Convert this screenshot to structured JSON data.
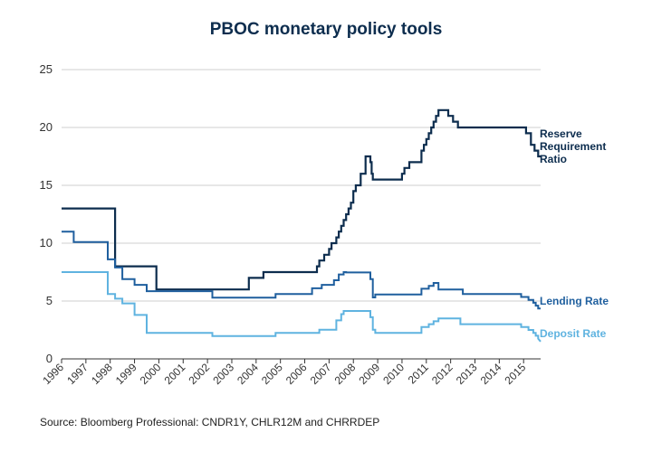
{
  "chart_data": {
    "type": "line",
    "title": "PBOC monetary policy tools",
    "source": "Source: Bloomberg Professional: CNDR1Y, CHLR12M and CHRRDEP",
    "xlabel": "",
    "ylabel": "",
    "xlim": [
      1996,
      2015.7
    ],
    "ylim": [
      0,
      25
    ],
    "y_ticks": [
      "0",
      "5",
      "10",
      "15",
      "20",
      "25"
    ],
    "x_ticks": [
      "1996",
      "1997",
      "1998",
      "1999",
      "2000",
      "2001",
      "2002",
      "2003",
      "2004",
      "2005",
      "2006",
      "2007",
      "2008",
      "2009",
      "2010",
      "2011",
      "2012",
      "2013",
      "2014",
      "2015"
    ],
    "grid": true,
    "colors": {
      "rrr": "#0d2d4e",
      "lending": "#1f5f9e",
      "deposit": "#5fb3e0"
    },
    "series": [
      {
        "name": "Reserve Requirement Ratio",
        "label_lines": [
          "Reserve",
          "Requirement",
          "Ratio"
        ],
        "x": [
          1996.0,
          1998.2,
          1998.2,
          1999.9,
          1999.9,
          2003.7,
          2003.7,
          2004.3,
          2004.3,
          2006.5,
          2006.5,
          2006.6,
          2006.6,
          2006.8,
          2006.8,
          2007.0,
          2007.0,
          2007.1,
          2007.1,
          2007.3,
          2007.3,
          2007.4,
          2007.4,
          2007.5,
          2007.5,
          2007.6,
          2007.6,
          2007.7,
          2007.7,
          2007.8,
          2007.8,
          2007.9,
          2007.9,
          2008.0,
          2008.0,
          2008.1,
          2008.1,
          2008.3,
          2008.3,
          2008.5,
          2008.5,
          2008.7,
          2008.7,
          2008.75,
          2008.75,
          2008.8,
          2008.8,
          2010.0,
          2010.0,
          2010.1,
          2010.1,
          2010.3,
          2010.3,
          2010.8,
          2010.8,
          2010.9,
          2010.9,
          2011.0,
          2011.0,
          2011.1,
          2011.1,
          2011.2,
          2011.2,
          2011.3,
          2011.3,
          2011.4,
          2011.4,
          2011.5,
          2011.5,
          2011.9,
          2011.9,
          2012.1,
          2012.1,
          2012.3,
          2012.3,
          2015.1,
          2015.1,
          2015.3,
          2015.3,
          2015.45,
          2015.45,
          2015.6,
          2015.6,
          2015.7
        ],
        "values": [
          13.0,
          13.0,
          8.0,
          8.0,
          6.0,
          6.0,
          7.0,
          7.0,
          7.5,
          7.5,
          8.0,
          8.0,
          8.5,
          8.5,
          9.0,
          9.0,
          9.5,
          9.5,
          10.0,
          10.0,
          10.5,
          10.5,
          11.0,
          11.0,
          11.5,
          11.5,
          12.0,
          12.0,
          12.5,
          12.5,
          13.0,
          13.0,
          13.5,
          13.5,
          14.5,
          14.5,
          15.0,
          15.0,
          16.0,
          16.0,
          17.5,
          17.5,
          17.0,
          17.0,
          16.0,
          16.0,
          15.5,
          15.5,
          16.0,
          16.0,
          16.5,
          16.5,
          17.0,
          17.0,
          18.0,
          18.0,
          18.5,
          18.5,
          19.0,
          19.0,
          19.5,
          19.5,
          20.0,
          20.0,
          20.5,
          20.5,
          21.0,
          21.0,
          21.5,
          21.5,
          21.0,
          21.0,
          20.5,
          20.5,
          20.0,
          20.0,
          19.5,
          19.5,
          18.5,
          18.5,
          18.0,
          18.0,
          17.5,
          17.5
        ]
      },
      {
        "name": "Lending Rate",
        "x": [
          1996.0,
          1996.5,
          1996.5,
          1997.9,
          1997.9,
          1998.2,
          1998.2,
          1998.5,
          1998.5,
          1999.0,
          1999.0,
          1999.5,
          1999.5,
          2002.2,
          2002.2,
          2004.8,
          2004.8,
          2006.3,
          2006.3,
          2006.7,
          2006.7,
          2007.2,
          2007.2,
          2007.4,
          2007.4,
          2007.6,
          2007.6,
          2007.7,
          2007.7,
          2008.7,
          2008.7,
          2008.8,
          2008.8,
          2008.9,
          2008.9,
          2010.8,
          2010.8,
          2011.1,
          2011.1,
          2011.3,
          2011.3,
          2011.5,
          2011.5,
          2012.4,
          2012.4,
          2012.5,
          2012.5,
          2014.9,
          2014.9,
          2015.2,
          2015.2,
          2015.4,
          2015.4,
          2015.5,
          2015.5,
          2015.6,
          2015.6,
          2015.7
        ],
        "values": [
          11.0,
          11.0,
          10.1,
          10.1,
          8.6,
          8.6,
          7.9,
          7.9,
          6.9,
          6.9,
          6.4,
          6.4,
          5.85,
          5.85,
          5.3,
          5.3,
          5.6,
          5.6,
          6.1,
          6.1,
          6.4,
          6.4,
          6.8,
          6.8,
          7.3,
          7.3,
          7.5,
          7.5,
          7.47,
          7.47,
          6.9,
          6.9,
          5.31,
          5.31,
          5.56,
          5.56,
          6.06,
          6.06,
          6.31,
          6.31,
          6.56,
          6.56,
          6.0,
          6.0,
          6.0,
          6.0,
          5.6,
          5.6,
          5.35,
          5.35,
          5.1,
          5.1,
          4.85,
          4.85,
          4.6,
          4.6,
          4.35,
          4.35
        ]
      },
      {
        "name": "Deposit Rate",
        "x": [
          1996.0,
          1996.5,
          1996.5,
          1997.9,
          1997.9,
          1998.2,
          1998.2,
          1998.5,
          1998.5,
          1999.0,
          1999.0,
          1999.5,
          1999.5,
          2002.2,
          2002.2,
          2004.8,
          2004.8,
          2006.6,
          2006.6,
          2007.3,
          2007.3,
          2007.5,
          2007.5,
          2007.6,
          2007.6,
          2008.7,
          2008.7,
          2008.8,
          2008.8,
          2008.9,
          2008.9,
          2010.8,
          2010.8,
          2011.1,
          2011.1,
          2011.3,
          2011.3,
          2011.5,
          2011.5,
          2012.4,
          2012.4,
          2012.5,
          2012.5,
          2014.9,
          2014.9,
          2015.2,
          2015.2,
          2015.4,
          2015.4,
          2015.5,
          2015.5,
          2015.6,
          2015.6,
          2015.7
        ],
        "values": [
          7.5,
          7.5,
          7.5,
          7.5,
          5.6,
          5.6,
          5.2,
          5.2,
          4.8,
          4.8,
          3.8,
          3.8,
          2.25,
          2.25,
          1.98,
          1.98,
          2.25,
          2.25,
          2.52,
          2.52,
          3.33,
          3.33,
          3.87,
          3.87,
          4.14,
          4.14,
          3.6,
          3.6,
          2.52,
          2.52,
          2.25,
          2.25,
          2.75,
          2.75,
          3.0,
          3.0,
          3.25,
          3.25,
          3.5,
          3.5,
          3.0,
          3.0,
          3.0,
          3.0,
          2.75,
          2.75,
          2.5,
          2.5,
          2.25,
          2.25,
          2.0,
          2.0,
          1.75,
          1.5
        ]
      }
    ]
  }
}
